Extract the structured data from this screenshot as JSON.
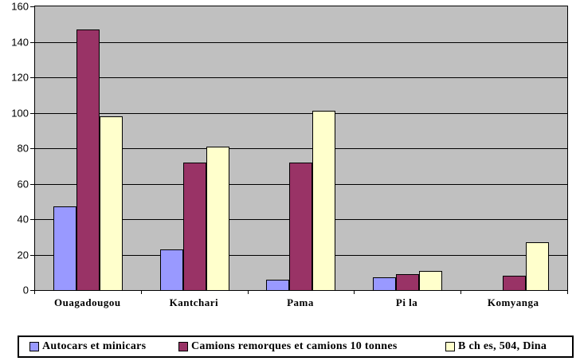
{
  "chart_data": {
    "type": "bar",
    "title": "",
    "xlabel": "",
    "ylabel": "",
    "categories": [
      "Ouagadougou",
      "Kantchari",
      "Pama",
      "Pi la",
      "Komyanga"
    ],
    "series": [
      {
        "name": "Autocars et minicars",
        "color": "#9999FF",
        "values": [
          47,
          23,
          6,
          7,
          0
        ]
      },
      {
        "name": "Camions remorques et camions 10 tonnes",
        "color": "#993366",
        "values": [
          147,
          72,
          72,
          9,
          8
        ]
      },
      {
        "name": "B ch es, 504, Dina",
        "color": "#FFFFCC",
        "values": [
          98,
          81,
          101,
          11,
          27
        ]
      }
    ],
    "ylim": [
      0,
      160
    ],
    "ytick_step": 20,
    "ytick_labels": [
      "0",
      "20",
      "40",
      "60",
      "80",
      "100",
      "120",
      "140",
      "160"
    ],
    "grid": true,
    "legend_position": "bottom",
    "colors": {
      "plot_background": "#C0C0C0",
      "page_background": "#FFFFFF",
      "gridline": "#000000",
      "axis_text": "#000000",
      "bar_border": "#000000"
    }
  }
}
